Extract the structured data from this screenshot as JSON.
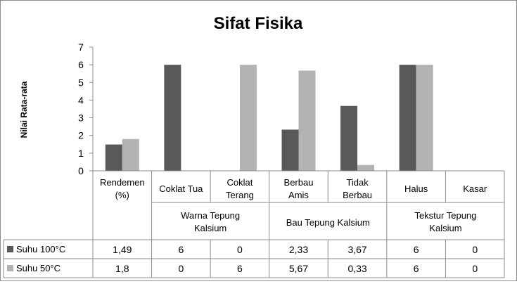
{
  "chart_data": {
    "type": "bar",
    "title": "Sifat Fisika",
    "ylabel": "Nilai Rata-rata",
    "xlabel": "",
    "ylim": [
      0,
      7
    ],
    "yticks": [
      0,
      1,
      2,
      3,
      4,
      5,
      6,
      7
    ],
    "grid": false,
    "legend": "data-table",
    "categories": [
      [
        "Rendemen",
        "(%)"
      ],
      [
        "Coklat Tua"
      ],
      [
        "Coklat",
        "Terang"
      ],
      [
        "Berbau",
        "Amis"
      ],
      [
        "Tidak",
        "Berbau"
      ],
      [
        "Halus"
      ],
      [
        "Kasar"
      ]
    ],
    "groups": [
      {
        "label": [
          "Warna Tepung",
          "Kalsium"
        ],
        "start": 1,
        "end": 2
      },
      {
        "label": [
          "Bau Tepung Kalsium"
        ],
        "start": 3,
        "end": 4
      },
      {
        "label": [
          "Tekstur Tepung",
          "Kalsium"
        ],
        "start": 5,
        "end": 6
      }
    ],
    "series": [
      {
        "name": "Suhu 100°C",
        "color": "#595959",
        "values": [
          1.49,
          6,
          0,
          2.33,
          3.67,
          6,
          0
        ],
        "labels": [
          "1,49",
          "6",
          "0",
          "2,33",
          "3,67",
          "6",
          "0"
        ]
      },
      {
        "name": "Suhu 50°C",
        "color": "#b3b3b3",
        "values": [
          1.8,
          0,
          6,
          5.67,
          0.33,
          6,
          0
        ],
        "labels": [
          "1,8",
          "0",
          "6",
          "5,67",
          "0,33",
          "6",
          "0"
        ]
      }
    ]
  }
}
